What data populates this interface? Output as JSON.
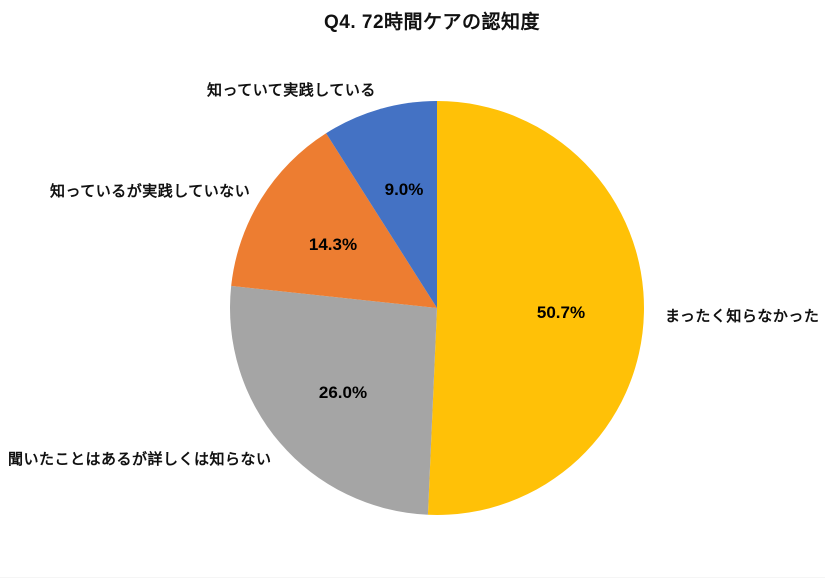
{
  "page": {
    "background": "#ffffff"
  },
  "chart_data": {
    "type": "pie",
    "title": "Q4. 72時間ケアの認知度",
    "direction": "clockwise",
    "start_angle": "12-o-clock",
    "legend_position": "none",
    "labels_outside": true,
    "percent_labels_inside": true,
    "slices": [
      {
        "label": "まったく知らなかった",
        "value": 50.7,
        "pct_label": "50.7%",
        "color": "#FFC107"
      },
      {
        "label": "聞いたことはあるが詳しくは知らない",
        "value": 26.0,
        "pct_label": "26.0%",
        "color": "#A5A5A5"
      },
      {
        "label": "知っているが実践していない",
        "value": 14.3,
        "pct_label": "14.3%",
        "color": "#ED7D31"
      },
      {
        "label": "知っていて実践している",
        "value": 9.0,
        "pct_label": "9.0%",
        "color": "#4472C4"
      }
    ]
  }
}
